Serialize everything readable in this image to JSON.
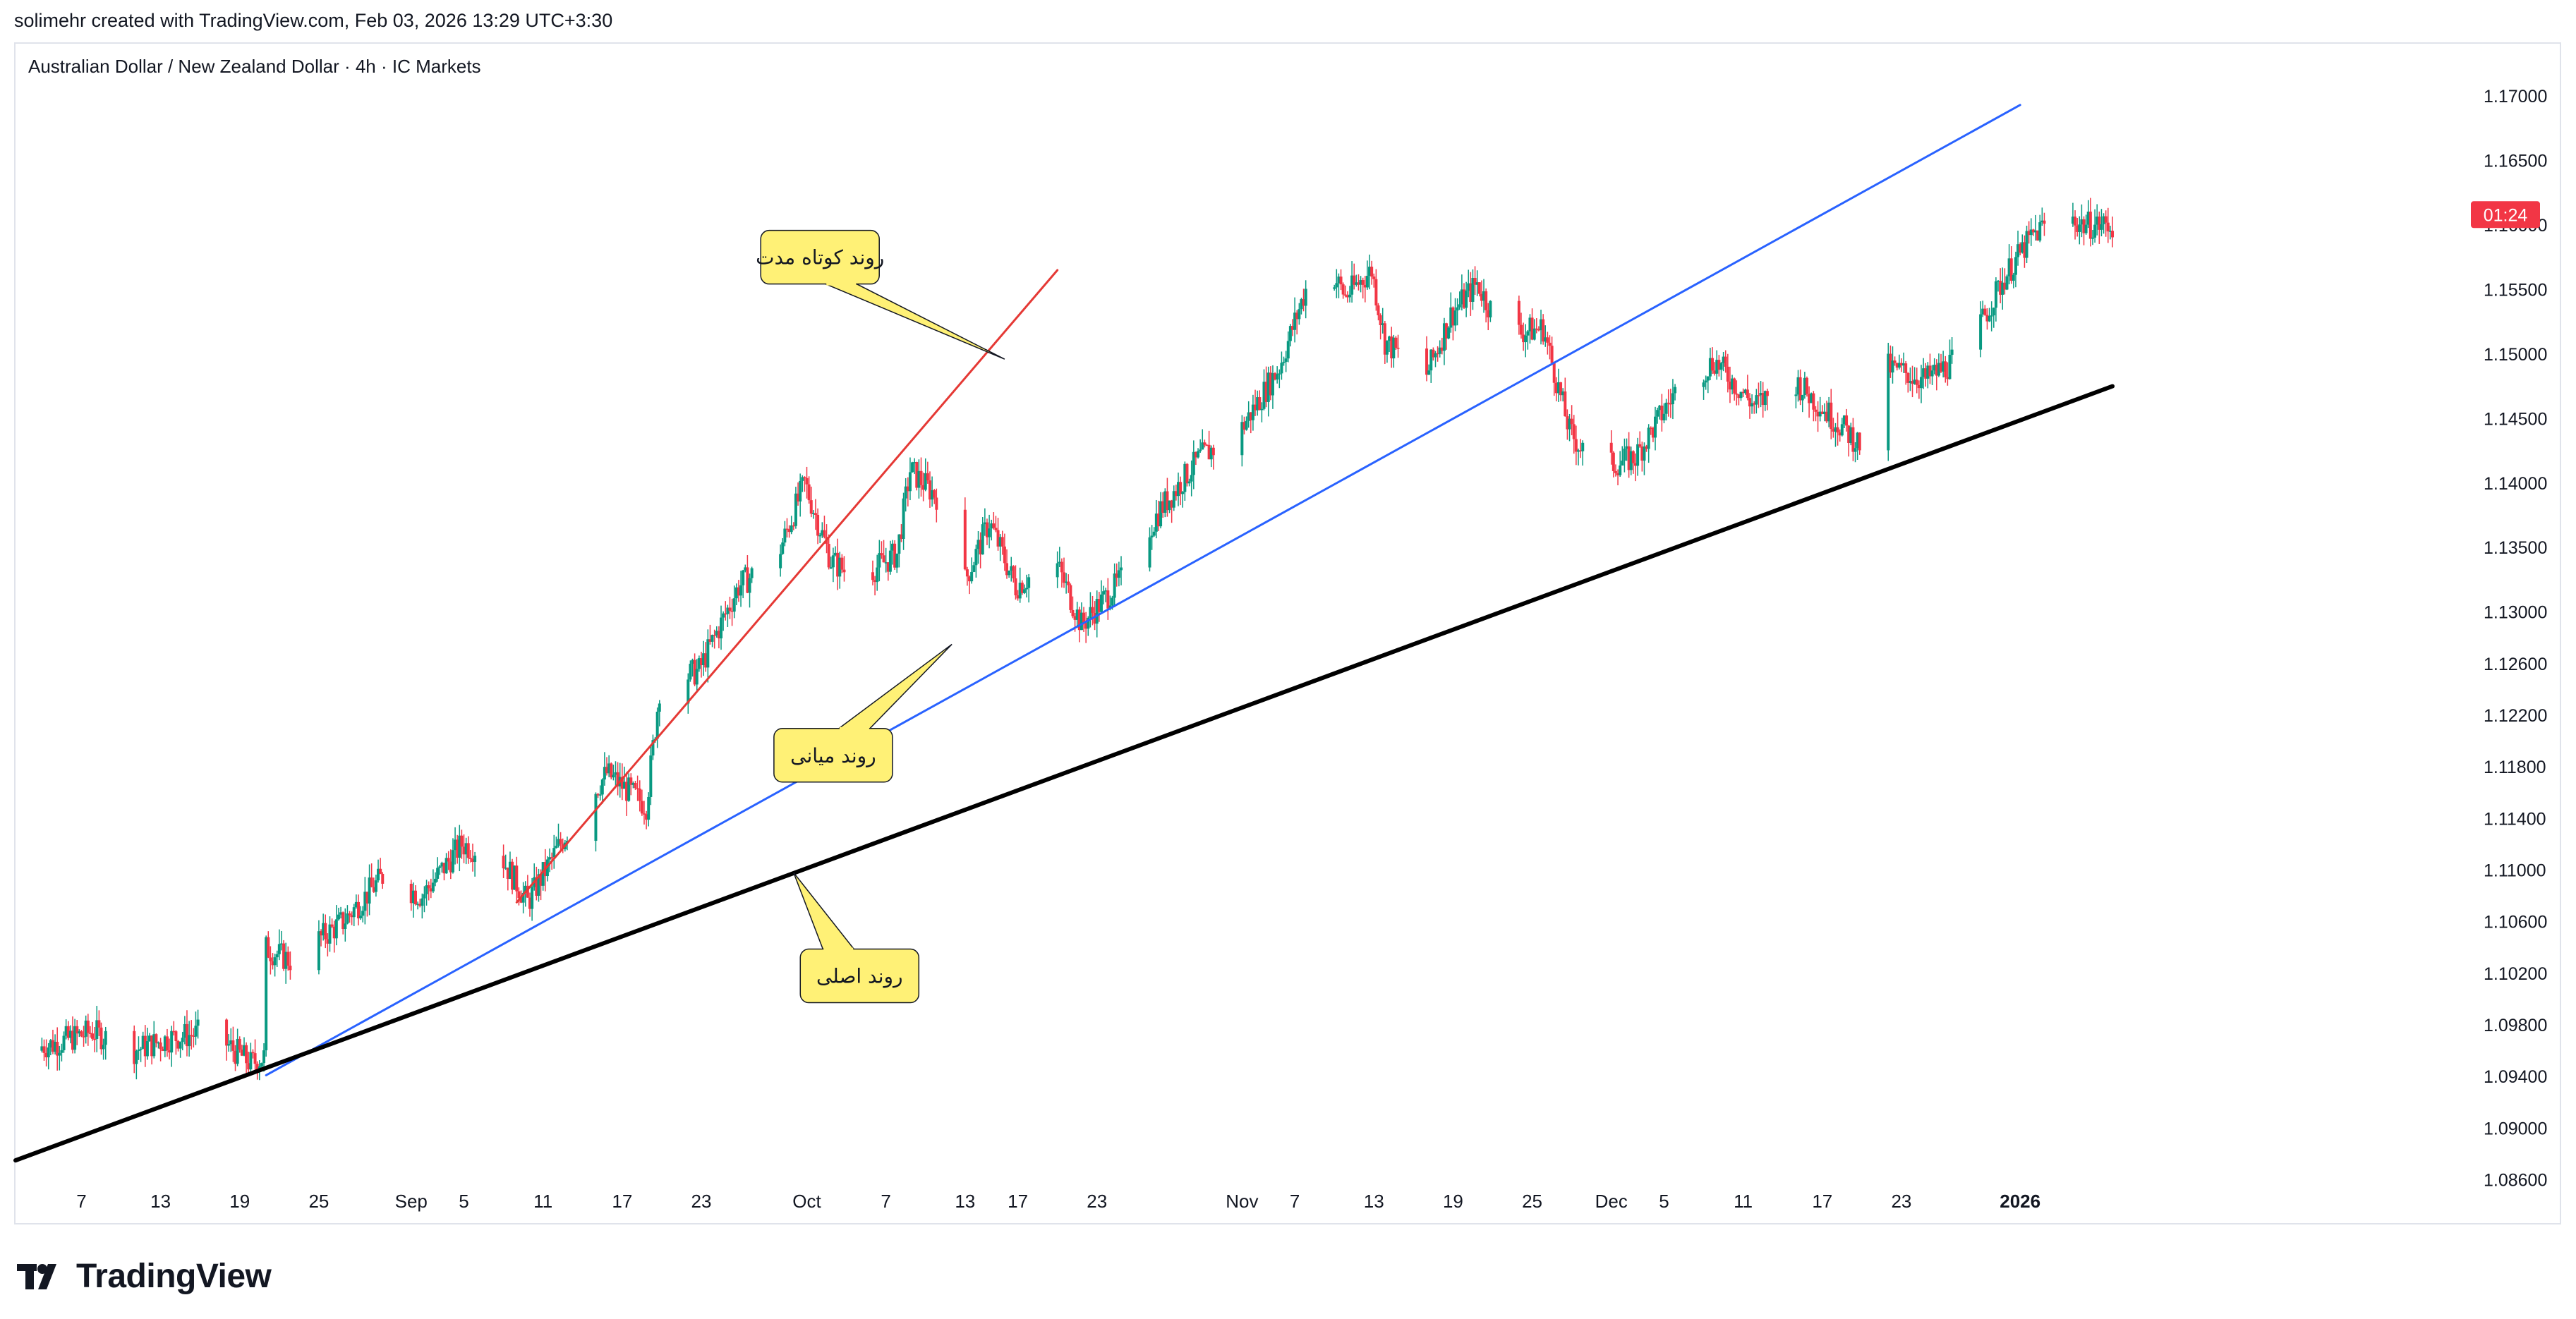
{
  "header": {
    "attribution": "solimehr created with TradingView.com, Feb 03, 2026 13:29 UTC+3:30"
  },
  "footer": {
    "brand": "TradingView"
  },
  "colors": {
    "up": "#089981",
    "down": "#f23645",
    "trend_short": "#e53935",
    "trend_mid": "#2962ff",
    "trend_main": "#000000",
    "callout_bg": "#fff176",
    "price_tag_bg": "#f23645",
    "axis_text": "#131722",
    "border": "#e0e3eb"
  },
  "chart_data": {
    "type": "candlestick",
    "title": "Australian Dollar / New Zealand Dollar · 4h · IC Markets",
    "xlabel": "",
    "ylabel": "",
    "ylim": [
      1.0845,
      1.1735
    ],
    "y_ticks": [
      "1.17000",
      "1.16500",
      "1.16000",
      "1.15500",
      "1.15000",
      "1.14500",
      "1.14000",
      "1.13500",
      "1.13000",
      "1.12600",
      "1.12200",
      "1.11800",
      "1.11400",
      "1.11000",
      "1.10600",
      "1.10200",
      "1.09800",
      "1.09400",
      "1.09000",
      "1.08600"
    ],
    "x_range": [
      "2025-08-02",
      "2026-02-03"
    ],
    "x_ticks": [
      {
        "date": "2025-08-07",
        "label": "7"
      },
      {
        "date": "2025-08-13",
        "label": "13"
      },
      {
        "date": "2025-08-19",
        "label": "19"
      },
      {
        "date": "2025-08-25",
        "label": "25"
      },
      {
        "date": "2025-09-01",
        "label": "Sep"
      },
      {
        "date": "2025-09-05",
        "label": "5"
      },
      {
        "date": "2025-09-11",
        "label": "11"
      },
      {
        "date": "2025-09-17",
        "label": "17"
      },
      {
        "date": "2025-09-23",
        "label": "23"
      },
      {
        "date": "2025-10-01",
        "label": "Oct"
      },
      {
        "date": "2025-10-07",
        "label": "7"
      },
      {
        "date": "2025-10-13",
        "label": "13"
      },
      {
        "date": "2025-10-17",
        "label": "17"
      },
      {
        "date": "2025-10-23",
        "label": "23"
      },
      {
        "date": "2025-11-03",
        "label": "Nov"
      },
      {
        "date": "2025-11-07",
        "label": "7"
      },
      {
        "date": "2025-11-13",
        "label": "13"
      },
      {
        "date": "2025-11-19",
        "label": "19"
      },
      {
        "date": "2025-11-25",
        "label": "25"
      },
      {
        "date": "2025-12-01",
        "label": "Dec"
      },
      {
        "date": "2025-12-05",
        "label": "5"
      },
      {
        "date": "2025-12-11",
        "label": "11"
      },
      {
        "date": "2025-12-17",
        "label": "17"
      },
      {
        "date": "2025-12-23",
        "label": "23"
      },
      {
        "date": "2026-01-01",
        "label": "2026"
      }
    ],
    "price_path": [
      [
        "2025-08-02",
        1.096
      ],
      [
        "2025-08-05",
        1.0965
      ],
      [
        "2025-08-08",
        1.0975
      ],
      [
        "2025-08-11",
        1.096
      ],
      [
        "2025-08-14",
        1.097
      ],
      [
        "2025-08-17",
        1.0975
      ],
      [
        "2025-08-20",
        1.095
      ],
      [
        "2025-08-21",
        1.0955
      ],
      [
        "2025-08-21",
        1.104
      ],
      [
        "2025-08-23",
        1.103
      ],
      [
        "2025-08-27",
        1.106
      ],
      [
        "2025-08-30",
        1.1095
      ],
      [
        "2025-09-02",
        1.108
      ],
      [
        "2025-09-05",
        1.112
      ],
      [
        "2025-09-08",
        1.111
      ],
      [
        "2025-09-10",
        1.1075
      ],
      [
        "2025-09-13",
        1.113
      ],
      [
        "2025-09-16",
        1.1175
      ],
      [
        "2025-09-19",
        1.115
      ],
      [
        "2025-09-20",
        1.124
      ],
      [
        "2025-09-23",
        1.1255
      ],
      [
        "2025-09-26",
        1.132
      ],
      [
        "2025-09-29",
        1.1345
      ],
      [
        "2025-10-01",
        1.14
      ],
      [
        "2025-10-03",
        1.134
      ],
      [
        "2025-10-05",
        1.1325
      ],
      [
        "2025-10-08",
        1.1345
      ],
      [
        "2025-10-09",
        1.141
      ],
      [
        "2025-10-11",
        1.139
      ],
      [
        "2025-10-13",
        1.132
      ],
      [
        "2025-10-15",
        1.137
      ],
      [
        "2025-10-17",
        1.132
      ],
      [
        "2025-10-20",
        1.134
      ],
      [
        "2025-10-22",
        1.129
      ],
      [
        "2025-10-25",
        1.1325
      ],
      [
        "2025-10-28",
        1.138
      ],
      [
        "2025-10-31",
        1.142
      ],
      [
        "2025-11-03",
        1.144
      ],
      [
        "2025-11-06",
        1.149
      ],
      [
        "2025-11-09",
        1.158
      ],
      [
        "2025-11-11",
        1.1545
      ],
      [
        "2025-11-13",
        1.1565
      ],
      [
        "2025-11-14",
        1.151
      ],
      [
        "2025-11-17",
        1.148
      ],
      [
        "2025-11-19",
        1.153
      ],
      [
        "2025-11-21",
        1.1555
      ],
      [
        "2025-11-23",
        1.1515
      ],
      [
        "2025-11-26",
        1.152
      ],
      [
        "2025-11-28",
        1.144
      ],
      [
        "2025-11-30",
        1.141
      ],
      [
        "2025-12-03",
        1.142
      ],
      [
        "2025-12-06",
        1.147
      ],
      [
        "2025-12-09",
        1.1495
      ],
      [
        "2025-12-12",
        1.146
      ],
      [
        "2025-12-15",
        1.148
      ],
      [
        "2025-12-18",
        1.145
      ],
      [
        "2025-12-20",
        1.143
      ],
      [
        "2025-12-22",
        1.149
      ],
      [
        "2025-12-25",
        1.148
      ],
      [
        "2025-12-28",
        1.15
      ],
      [
        "2025-12-31",
        1.156
      ],
      [
        "2026-01-02",
        1.159
      ],
      [
        "2026-01-04",
        1.161
      ],
      [
        "2026-01-06",
        1.16
      ]
    ],
    "last_price_tag": {
      "price": 1.1608,
      "label": "01:24"
    },
    "trendlines": [
      {
        "name": "short",
        "color": "#e53935",
        "width": 3,
        "from": [
          "2025-09-09",
          1.1075
        ],
        "to": [
          "2025-10-20",
          1.1565
        ]
      },
      {
        "name": "mid",
        "color": "#2962ff",
        "width": 3,
        "from": [
          "2025-08-21",
          1.0941
        ],
        "to": [
          "2026-01-01",
          1.1693
        ]
      },
      {
        "name": "main",
        "color": "#000000",
        "width": 6,
        "from": [
          "2025-08-02",
          1.0875
        ],
        "to": [
          "2026-01-08",
          1.1475
        ]
      }
    ],
    "callouts": [
      {
        "text": "روند کوتاه مدت",
        "box": [
          "2025-10-02",
          1.1575
        ],
        "tip": [
          "2025-10-16",
          1.1496
        ]
      },
      {
        "text": "روند میانی",
        "box": [
          "2025-10-03",
          1.1189
        ],
        "tip": [
          "2025-10-12",
          1.1275
        ]
      },
      {
        "text": "روند اصلی",
        "box": [
          "2025-10-05",
          1.1018
        ],
        "tip": [
          "2025-09-30",
          1.1098
        ]
      }
    ]
  }
}
